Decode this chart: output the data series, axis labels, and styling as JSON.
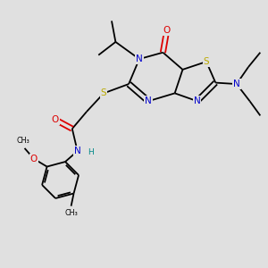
{
  "background_color": "#e0e0e0",
  "atom_colors": {
    "C": "#000000",
    "N": "#0000cc",
    "O": "#dd0000",
    "S": "#bbaa00",
    "H": "#008888"
  },
  "figsize": [
    3.0,
    3.0
  ],
  "dpi": 100,
  "lw": 1.3,
  "fs": 7.5,
  "fs_small": 6.5
}
